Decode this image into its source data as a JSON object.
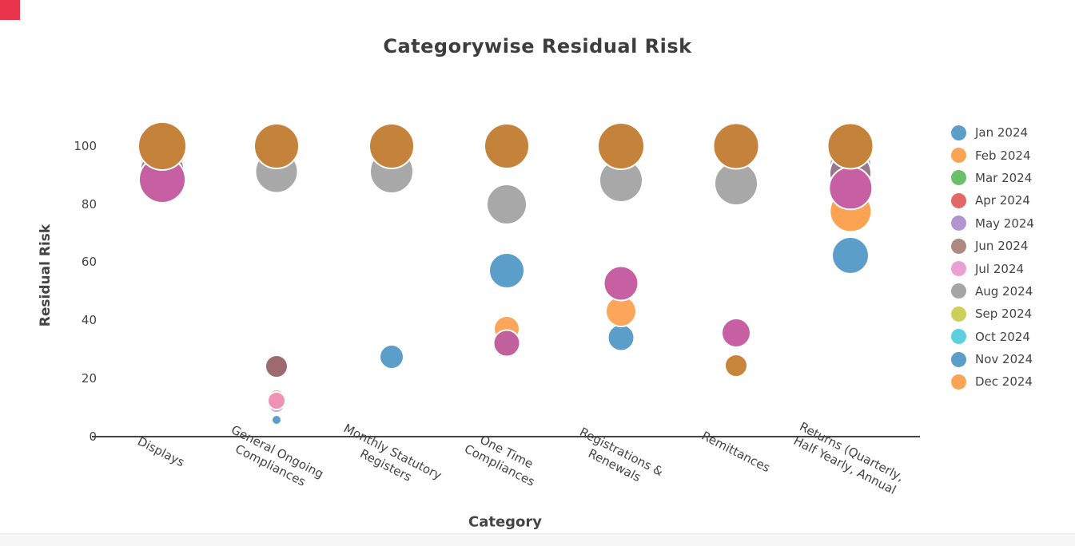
{
  "page": {
    "background": "#ffffff",
    "footer_strip_color": "#f6f6f7",
    "corner_marker_color": "#e9344c",
    "text_color": "#444444"
  },
  "chart_data": {
    "type": "bubble",
    "title": "Categorywise Residual Risk",
    "xlabel": "Category",
    "ylabel": "Residual Risk",
    "ylim": [
      0,
      100
    ],
    "yticks": [
      100,
      80,
      60,
      40,
      20,
      0
    ],
    "grid": false,
    "legend_position": "right",
    "categories": [
      {
        "label": "Displays",
        "lines": [
          "Displays"
        ]
      },
      {
        "label": "General Ongoing Compliances",
        "lines": [
          "General Ongoing",
          "Compliances"
        ]
      },
      {
        "label": "Monthly Statutory Registers",
        "lines": [
          "Monthly Statutory",
          "Registers"
        ]
      },
      {
        "label": "One Time Compliances",
        "lines": [
          "One Time",
          "Compliances"
        ]
      },
      {
        "label": "Registrations & Renewals",
        "lines": [
          "Registrations &",
          "Renewals"
        ]
      },
      {
        "label": "Remittances",
        "lines": [
          "Remittances"
        ]
      },
      {
        "label": "Returns (Quarterly, Half Yearly, Annual",
        "lines": [
          "Returns (Quarterly,",
          "Half Yearly, Annual"
        ]
      }
    ],
    "legend": [
      {
        "label": "Jan 2024",
        "color": "#5b9ec9"
      },
      {
        "label": "Feb 2024",
        "color": "#fca456"
      },
      {
        "label": "Mar 2024",
        "color": "#6abf69"
      },
      {
        "label": "Apr 2024",
        "color": "#e26868"
      },
      {
        "label": "May 2024",
        "color": "#b294d1"
      },
      {
        "label": "Jun 2024",
        "color": "#af8981"
      },
      {
        "label": "Jul 2024",
        "color": "#eba0d4"
      },
      {
        "label": "Aug 2024",
        "color": "#a5a5a5"
      },
      {
        "label": "Sep 2024",
        "color": "#ccd05a"
      },
      {
        "label": "Oct 2024",
        "color": "#5ed0dd"
      },
      {
        "label": "Nov 2024",
        "color": "#5b9ec9"
      },
      {
        "label": "Dec 2024",
        "color": "#fca456"
      }
    ],
    "points": [
      {
        "category": 0,
        "month": "Oct 2024",
        "value": 94,
        "r": 28,
        "color": "#a9cade"
      },
      {
        "category": 0,
        "month": "Feb 2024",
        "value": 93,
        "r": 29,
        "color": "#fba65b"
      },
      {
        "category": 0,
        "month": "May 2024",
        "value": 91.5,
        "r": 28.5,
        "color": "#9f8099"
      },
      {
        "category": 0,
        "month": "Jul 2024",
        "value": 88.3,
        "r": 30,
        "color": "#c760a2"
      },
      {
        "category": 0,
        "month": "Dec 2024",
        "value": 100,
        "r": 31,
        "color": "#c5823a"
      },
      {
        "category": 1,
        "month": "Aug 2024",
        "value": 91,
        "r": 27.5,
        "color": "#a8a8a8"
      },
      {
        "category": 1,
        "month": "Dec 2024",
        "value": 100,
        "r": 29,
        "color": "#c5823a"
      },
      {
        "category": 1,
        "month": "Jun 2024",
        "value": 24,
        "r": 15,
        "color": "#9d6b6f"
      },
      {
        "category": 1,
        "month": "Feb 2024",
        "value": 13.4,
        "r": 11,
        "color": "#fba65b"
      },
      {
        "category": 1,
        "month": "May 2024",
        "value": 11,
        "r": 11,
        "color": "#cfa0dc"
      },
      {
        "category": 1,
        "month": "Jul 2024",
        "value": 12.4,
        "r": 12,
        "color": "#ee93b4"
      },
      {
        "category": 1,
        "month": "Jan 2024",
        "value": 5.8,
        "r": 7,
        "color": "#5b9ec9"
      },
      {
        "category": 2,
        "month": "Aug 2024",
        "value": 91,
        "r": 28,
        "color": "#a8a8a8"
      },
      {
        "category": 2,
        "month": "Dec 2024",
        "value": 100,
        "r": 29,
        "color": "#c5823a"
      },
      {
        "category": 2,
        "month": "Jan 2024",
        "value": 27.5,
        "r": 16,
        "color": "#5b9ec9"
      },
      {
        "category": 3,
        "month": "Aug 2024",
        "value": 80,
        "r": 26,
        "color": "#a8a8a8"
      },
      {
        "category": 3,
        "month": "Jan 2024",
        "value": 57,
        "r": 23,
        "color": "#5b9ec9"
      },
      {
        "category": 3,
        "month": "Feb 2024",
        "value": 37,
        "r": 17,
        "color": "#fba65b"
      },
      {
        "category": 3,
        "month": "Jul 2024",
        "value": 32,
        "r": 17.5,
        "color": "#c2609e"
      },
      {
        "category": 3,
        "month": "Dec 2024",
        "value": 100,
        "r": 29,
        "color": "#c5823a"
      },
      {
        "category": 4,
        "month": "Jan 2024",
        "value": 34,
        "r": 17.5,
        "color": "#5b9ec9"
      },
      {
        "category": 4,
        "month": "Feb 2024",
        "value": 43,
        "r": 20,
        "color": "#fba65b"
      },
      {
        "category": 4,
        "month": "Jul 2024",
        "value": 52.8,
        "r": 22.5,
        "color": "#c760a2"
      },
      {
        "category": 4,
        "month": "Aug 2024",
        "value": 88,
        "r": 28,
        "color": "#a8a8a8"
      },
      {
        "category": 4,
        "month": "Dec 2024",
        "value": 100,
        "r": 30,
        "color": "#c5823a"
      },
      {
        "category": 5,
        "month": "Aug 2024",
        "value": 87,
        "r": 28,
        "color": "#a8a8a8"
      },
      {
        "category": 5,
        "month": "Feb 2024",
        "value": 24.3,
        "r": 15,
        "color": "#c9843c"
      },
      {
        "category": 5,
        "month": "Jul 2024",
        "value": 35.7,
        "r": 19,
        "color": "#c760a2"
      },
      {
        "category": 5,
        "month": "Dec 2024",
        "value": 100,
        "r": 29.5,
        "color": "#c5823a"
      },
      {
        "category": 6,
        "month": "Aug 2024",
        "value": 93.4,
        "r": 27,
        "color": "#a8a8a8"
      },
      {
        "category": 6,
        "month": "Jun 2024",
        "value": 90.7,
        "r": 27,
        "color": "#96788f"
      },
      {
        "category": 6,
        "month": "Feb 2024",
        "value": 77.4,
        "r": 26.7,
        "color": "#fba253"
      },
      {
        "category": 6,
        "month": "Jul 2024",
        "value": 85.4,
        "r": 27.7,
        "color": "#c760a2"
      },
      {
        "category": 6,
        "month": "Jan 2024",
        "value": 62.3,
        "r": 24,
        "color": "#5b9ec9"
      },
      {
        "category": 6,
        "month": "Dec 2024",
        "value": 100,
        "r": 29.5,
        "color": "#c5823a"
      }
    ]
  }
}
